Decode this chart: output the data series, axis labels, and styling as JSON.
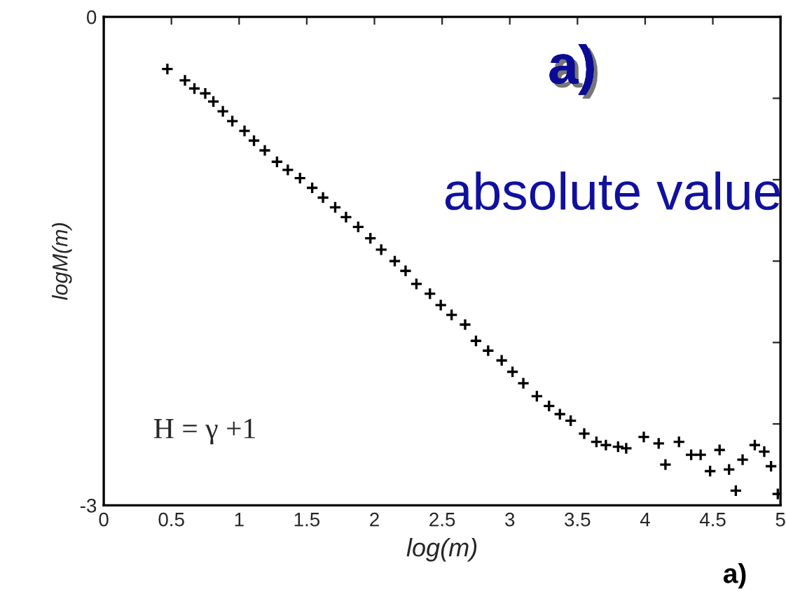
{
  "chart_data": {
    "type": "scatter",
    "xlabel": "log(m)",
    "ylabel": "logM(m)",
    "annotations": [
      "a)",
      "absolute value",
      "H = γ +1",
      "a)"
    ],
    "xlim": [
      0,
      5
    ],
    "ylim": [
      -3,
      0
    ],
    "xticks": [
      0,
      0.5,
      1,
      1.5,
      2,
      2.5,
      3,
      3.5,
      4,
      4.5,
      5
    ],
    "yticks": [
      0,
      {
        "value": -0.5,
        "label": null
      },
      {
        "value": -1,
        "label": null
      },
      {
        "value": -1.5,
        "label": null
      },
      {
        "value": -2,
        "label": null
      },
      {
        "value": -2.5,
        "label": null
      },
      -3
    ],
    "marker": "cross",
    "grid": false,
    "series": [
      {
        "color": "#000000",
        "x": [
          0.47,
          0.6,
          0.67,
          0.75,
          0.81,
          0.88,
          0.95,
          1.04,
          1.11,
          1.19,
          1.28,
          1.36,
          1.45,
          1.54,
          1.62,
          1.71,
          1.79,
          1.88,
          1.97,
          2.05,
          2.15,
          2.23,
          2.31,
          2.41,
          2.49,
          2.57,
          2.67,
          2.75,
          2.84,
          2.94,
          3.02,
          3.1,
          3.2,
          3.29,
          3.37,
          3.45,
          3.55,
          3.64,
          3.71,
          3.8,
          3.86,
          3.99,
          4.1,
          4.15,
          4.25,
          4.34,
          4.41,
          4.48,
          4.55,
          4.62,
          4.67,
          4.72,
          4.81,
          4.88,
          4.93,
          4.98
        ],
        "values": [
          -0.32,
          -0.39,
          -0.44,
          -0.47,
          -0.52,
          -0.58,
          -0.64,
          -0.7,
          -0.76,
          -0.82,
          -0.89,
          -0.94,
          -0.99,
          -1.05,
          -1.11,
          -1.17,
          -1.23,
          -1.29,
          -1.36,
          -1.43,
          -1.5,
          -1.56,
          -1.64,
          -1.7,
          -1.77,
          -1.83,
          -1.89,
          -1.99,
          -2.05,
          -2.11,
          -2.18,
          -2.25,
          -2.33,
          -2.39,
          -2.44,
          -2.48,
          -2.56,
          -2.61,
          -2.63,
          -2.64,
          -2.65,
          -2.58,
          -2.62,
          -2.75,
          -2.61,
          -2.69,
          -2.69,
          -2.79,
          -2.66,
          -2.78,
          -2.91,
          -2.72,
          -2.63,
          -2.67,
          -2.76,
          -2.93
        ]
      }
    ]
  }
}
